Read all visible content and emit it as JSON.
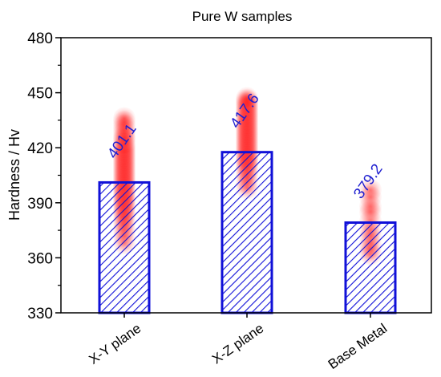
{
  "chart_data": {
    "type": "bar",
    "title": "Pure W samples",
    "ylabel": "Hardness / Hv",
    "xlabel": "",
    "ylim": [
      330,
      480
    ],
    "yticks": [
      330,
      360,
      390,
      420,
      450,
      480
    ],
    "categories": [
      "X-Y plane",
      "X-Z plane",
      "Base Metal"
    ],
    "values": [
      401.1,
      417.6,
      379.2
    ],
    "value_labels": [
      "401.1",
      "417.6",
      "379.2"
    ],
    "bar_style": "hatched",
    "bar_color": "#1010d8",
    "value_label_color": "#2020d0",
    "point_color": "#ff1a1a",
    "individual_points": [
      [
        368,
        372,
        375,
        378,
        380,
        382,
        384,
        385,
        386,
        388,
        389,
        390,
        391,
        392,
        393,
        394,
        395,
        396,
        397,
        398,
        399,
        400,
        401,
        402,
        403,
        404,
        405,
        406,
        407,
        408,
        409,
        410,
        411,
        412,
        413,
        414,
        415,
        416,
        417,
        418,
        419,
        420,
        421,
        422,
        424,
        425,
        426,
        428,
        430,
        432,
        434,
        436
      ],
      [
        398,
        401,
        404,
        406,
        408,
        410,
        411,
        412,
        413,
        414,
        415,
        416,
        417,
        418,
        419,
        420,
        421,
        422,
        423,
        424,
        425,
        426,
        427,
        428,
        429,
        430,
        431,
        432,
        433,
        434,
        435,
        436,
        437,
        438,
        439,
        440,
        441,
        442,
        443,
        444,
        445,
        446,
        447
      ],
      [
        362,
        365,
        368,
        372,
        375,
        380,
        385,
        388,
        393,
        397
      ]
    ]
  }
}
